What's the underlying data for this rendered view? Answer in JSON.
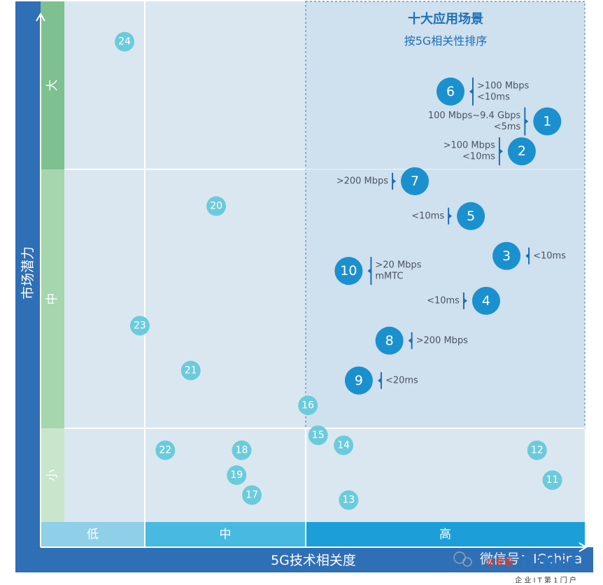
{
  "chart_data": {
    "type": "scatter",
    "title": "十大应用场景",
    "subtitle": "按5G相关性排序",
    "xlabel": "5G技术相关度",
    "ylabel": "市场潜力",
    "x_levels": [
      "低",
      "中",
      "高"
    ],
    "y_levels": [
      "大",
      "中",
      "小"
    ],
    "xlim": [
      0,
      10
    ],
    "ylim": [
      0,
      10
    ],
    "top_ten": [
      {
        "id": "1",
        "x": 9.4,
        "y": 7.9,
        "note": [
          "100 Mbps~9.4 Gbps",
          "<5ms"
        ],
        "note_side": "left"
      },
      {
        "id": "2",
        "x": 8.9,
        "y": 7.3,
        "note": [
          ">100 Mbps",
          "<10ms"
        ],
        "note_side": "left"
      },
      {
        "id": "3",
        "x": 8.6,
        "y": 5.2,
        "note": [
          "<10ms"
        ],
        "note_side": "right"
      },
      {
        "id": "4",
        "x": 8.2,
        "y": 4.3,
        "note": [
          "<10ms"
        ],
        "note_side": "left"
      },
      {
        "id": "5",
        "x": 7.9,
        "y": 6.0,
        "note": [
          "<10ms"
        ],
        "note_side": "left"
      },
      {
        "id": "6",
        "x": 7.5,
        "y": 8.5,
        "note": [
          ">100 Mbps",
          "<10ms"
        ],
        "note_side": "right"
      },
      {
        "id": "7",
        "x": 6.8,
        "y": 6.7,
        "note": [
          ">200 Mbps"
        ],
        "note_side": "left"
      },
      {
        "id": "8",
        "x": 6.3,
        "y": 3.5,
        "note": [
          ">200 Mbps"
        ],
        "note_side": "right"
      },
      {
        "id": "9",
        "x": 5.7,
        "y": 2.7,
        "note": [
          "<20ms"
        ],
        "note_side": "right"
      },
      {
        "id": "10",
        "x": 5.5,
        "y": 4.9,
        "note": [
          ">20 Mbps",
          "mMTC"
        ],
        "note_side": "right"
      }
    ],
    "others": [
      {
        "id": "11",
        "x": 9.5,
        "y": 0.7
      },
      {
        "id": "12",
        "x": 9.2,
        "y": 1.3
      },
      {
        "id": "13",
        "x": 5.5,
        "y": 0.3
      },
      {
        "id": "14",
        "x": 5.4,
        "y": 1.4
      },
      {
        "id": "15",
        "x": 4.9,
        "y": 1.6
      },
      {
        "id": "16",
        "x": 4.7,
        "y": 2.2
      },
      {
        "id": "17",
        "x": 3.6,
        "y": 0.4
      },
      {
        "id": "18",
        "x": 3.4,
        "y": 1.3
      },
      {
        "id": "19",
        "x": 3.3,
        "y": 0.8
      },
      {
        "id": "20",
        "x": 2.9,
        "y": 6.2
      },
      {
        "id": "21",
        "x": 2.4,
        "y": 2.9
      },
      {
        "id": "22",
        "x": 1.9,
        "y": 1.3
      },
      {
        "id": "23",
        "x": 1.4,
        "y": 3.8
      },
      {
        "id": "24",
        "x": 1.1,
        "y": 9.5
      }
    ]
  },
  "watermark": {
    "wechat": "微信号：ICchina",
    "logo": "DiNet",
    "logo_cn": "企业级",
    "tagline": "企 业 I T 第 1 门 户"
  },
  "colors": {
    "frame": "#2f6fb5",
    "plot_bg": "#dae7f1",
    "highlight_bg": "#cfe0ee",
    "top_ten_circle": "#1b90cf",
    "other_circle": "#6ccbdb",
    "x_low": "#8fcfe8",
    "x_mid": "#48b9e0",
    "x_high": "#1c9fd8",
    "y_high": "#7ec08f",
    "y_mid": "#a6d6ae",
    "y_low": "#c9e6cd"
  }
}
